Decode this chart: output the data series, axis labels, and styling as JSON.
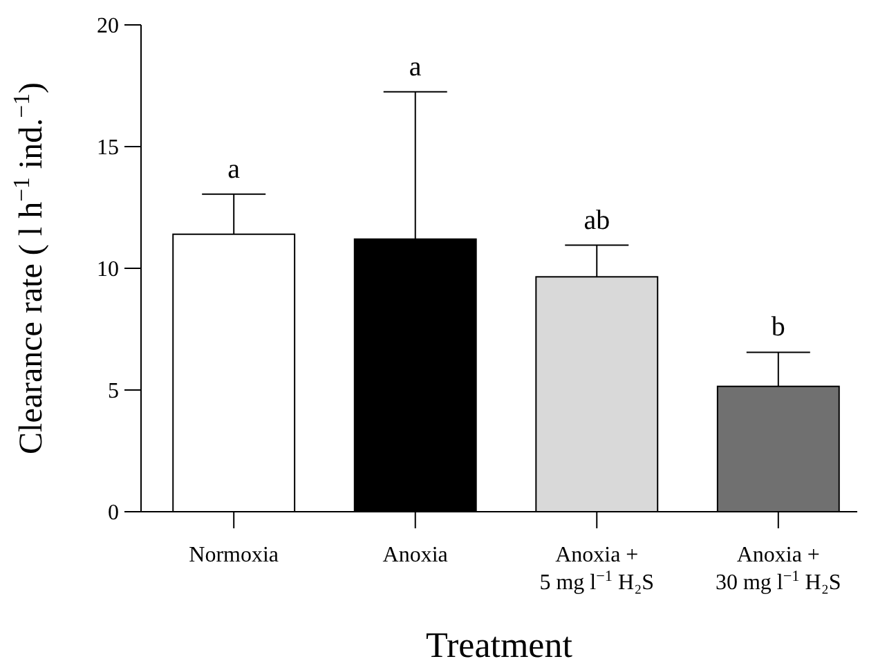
{
  "chart_data": {
    "type": "bar",
    "xlabel": "Treatment",
    "ylabel": "Clearance rate ( l h$^{−1}$ ind.$^{−1}$)",
    "categories": [
      "Normoxia",
      "Anoxia",
      "Anoxia +\n5 mg l$^{−1}$ H₂S",
      "Anoxia +\n30 mg l$^{−1}$ H₂S"
    ],
    "values": [
      11.4,
      11.2,
      9.65,
      5.15
    ],
    "colors": [
      "#ffffff",
      "#000000",
      "#d9d9d9",
      "#707070"
    ],
    "errors": [
      [
        11.4,
        13.05
      ],
      [
        11.2,
        17.25
      ],
      [
        9.65,
        10.95
      ],
      [
        5.15,
        6.55
      ]
    ],
    "ylim": [
      0,
      20
    ],
    "yticks": [
      0,
      5,
      10,
      15,
      20
    ],
    "grid": false,
    "annotations": [
      {
        "text": "a",
        "x": "Normoxia",
        "y": 13.05
      },
      {
        "text": "a",
        "x": "Anoxia",
        "y": 17.25
      },
      {
        "text": "ab",
        "x": "Anoxia +\n5 mg l$^{−1}$ H₂S",
        "y": 10.95
      },
      {
        "text": "b",
        "x": "Anoxia +\n30 mg l$^{−1}$ H₂S",
        "y": 6.55
      }
    ]
  }
}
